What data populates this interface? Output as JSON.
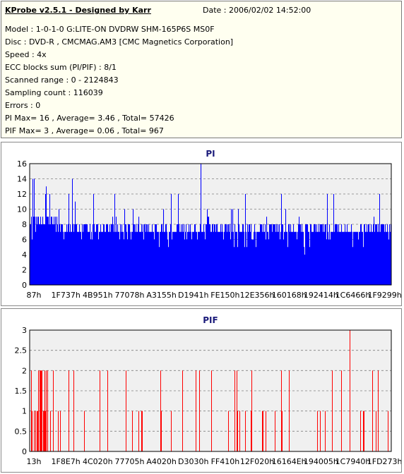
{
  "info": {
    "title": "KProbe v2.5.1 - Designed by Karr",
    "date": "Date : 2006/02/02 14:52:00",
    "lines": [
      "Model : 1-0-1-0 G:LITE-ON DVDRW SHM-165P6S MS0F",
      "Disc : DVD-R , CMCMAG.AM3 [CMC Magnetics Corporation]",
      "Speed : 4x",
      "ECC blocks sum (PI/PIF) : 8/1",
      "Scanned range : 0 - 2124843",
      "Sampling count : 116039",
      "Errors : 0",
      "PI Max= 16 , Average= 3.46 , Total= 57426",
      "PIF Max= 3 , Average= 0.06 , Total= 967"
    ]
  },
  "colors": {
    "pi_bar": "#0000ff",
    "pif_bar": "#ff0000",
    "plot_bg": "#f0f0f0",
    "grid": "#808080"
  },
  "chart_data": [
    {
      "type": "bar",
      "title": "PI",
      "ylim": [
        0,
        16
      ],
      "yticks": [
        0,
        2,
        4,
        6,
        8,
        10,
        12,
        14,
        16
      ],
      "xticks": [
        "87h",
        "1F737h",
        "4B951h",
        "77078h",
        "A3155h",
        "D1941h",
        "FE150h",
        "12E356h",
        "160168h",
        "192414h",
        "1C6466h",
        "1F9299h"
      ],
      "grid": "horizontal dashed",
      "baseline_approx": 7,
      "max": 16,
      "peak_position_fraction": 0.473,
      "notable_values": [
        14,
        14,
        13,
        12,
        12,
        12,
        12,
        12,
        14,
        12
      ]
    },
    {
      "type": "bar",
      "title": "PIF",
      "ylim": [
        0,
        3
      ],
      "yticks": [
        0,
        0.5,
        1,
        1.5,
        2,
        2.5,
        3
      ],
      "xticks": [
        "13h",
        "1F8E7h",
        "4C020h",
        "77705h",
        "A4020h",
        "D3030h",
        "FF410h",
        "12F020h",
        "16164Eh",
        "194005h",
        "1C7940h",
        "1FD273h"
      ],
      "grid": "horizontal dashed",
      "max": 3,
      "peak_position_fraction": 0.885
    }
  ]
}
